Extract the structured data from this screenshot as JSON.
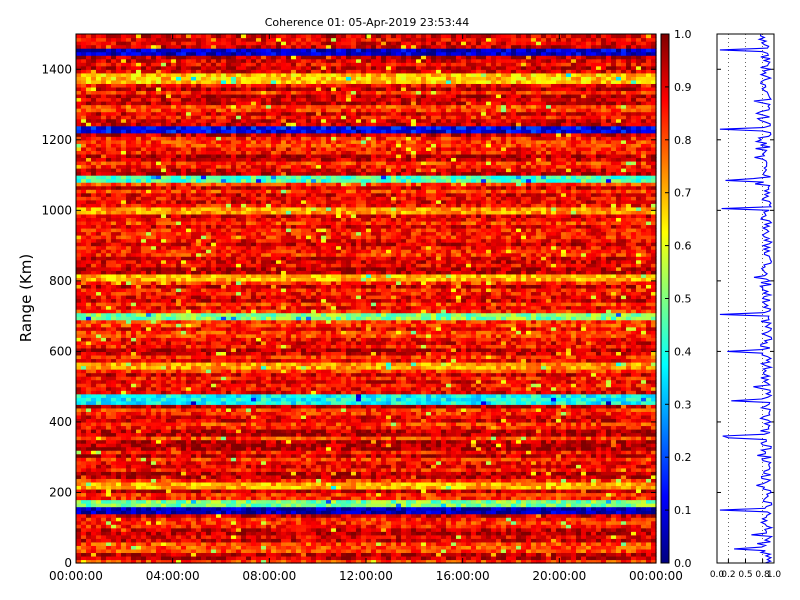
{
  "figure": {
    "title": "Coherence 01: 05-Apr-2019 23:53:44"
  },
  "chart_data": [
    {
      "type": "heatmap",
      "title": "Coherence 01: 05-Apr-2019 23:53:44",
      "xlabel": "",
      "ylabel": "Range (Km)",
      "x_ticks": [
        "00:00:00",
        "04:00:00",
        "08:00:00",
        "12:00:00",
        "16:00:00",
        "20:00:00",
        "00:00:00"
      ],
      "y_ticks": [
        0,
        200,
        400,
        600,
        800,
        1000,
        1200,
        1400
      ],
      "ylim": [
        0,
        1500
      ],
      "colormap": "jet",
      "colorbar": {
        "range": [
          0.0,
          1.0
        ],
        "ticks": [
          "0.0",
          "0.1",
          "0.2",
          "0.3",
          "0.4",
          "0.5",
          "0.6",
          "0.7",
          "0.8",
          "0.9",
          "1.0"
        ]
      },
      "range_bands": [
        {
          "range_km": [
            1448,
            1458
          ],
          "coherence": 0.08
        },
        {
          "range_km": [
            1366,
            1386
          ],
          "coherence": 0.68
        },
        {
          "range_km": [
            1222,
            1236
          ],
          "coherence": 0.12
        },
        {
          "range_km": [
            1082,
            1092
          ],
          "coherence": 0.45
        },
        {
          "range_km": [
            1000,
            1008
          ],
          "coherence": 0.72
        },
        {
          "range_km": [
            808,
            816
          ],
          "coherence": 0.7
        },
        {
          "range_km": [
            693,
            703
          ],
          "coherence": 0.5
        },
        {
          "range_km": [
            555,
            565
          ],
          "coherence": 0.72
        },
        {
          "range_km": [
            455,
            470
          ],
          "coherence": 0.38
        },
        {
          "range_km": [
            218,
            228
          ],
          "coherence": 0.7
        },
        {
          "range_km": [
            160,
            176
          ],
          "coherence": 0.5
        },
        {
          "range_km": [
            145,
            155
          ],
          "coherence": 0.05
        }
      ],
      "background_coherence": 0.88
    },
    {
      "type": "line",
      "title": "",
      "xlabel": "",
      "ylabel": "",
      "xlim": [
        0.0,
        1.0
      ],
      "x_ticks": [
        "0.0",
        "0.2",
        "0.5",
        "0.8",
        "1.0"
      ],
      "ylim": [
        0,
        1500
      ],
      "line_color": "#0000ff",
      "grid_lines_x": [
        0.2,
        0.5,
        0.8
      ],
      "profile_dips": [
        {
          "range_km": 1453,
          "coherence": 0.05
        },
        {
          "range_km": 1229,
          "coherence": 0.05
        },
        {
          "range_km": 1087,
          "coherence": 0.15
        },
        {
          "range_km": 1004,
          "coherence": 0.08
        },
        {
          "range_km": 812,
          "coherence": 0.65
        },
        {
          "range_km": 706,
          "coherence": 0.05
        },
        {
          "range_km": 600,
          "coherence": 0.18
        },
        {
          "range_km": 462,
          "coherence": 0.25
        },
        {
          "range_km": 356,
          "coherence": 0.2
        },
        {
          "range_km": 360,
          "coherence": 0.1
        },
        {
          "range_km": 150,
          "coherence": 0.05
        },
        {
          "range_km": 40,
          "coherence": 0.3
        }
      ]
    }
  ]
}
